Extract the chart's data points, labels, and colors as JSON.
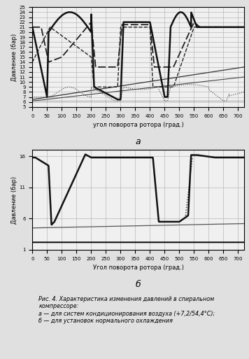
{
  "fig_width": 3.56,
  "fig_height": 5.13,
  "dpi": 100,
  "bg_color": "#e0e0e0",
  "plot_bg": "#f0f0f0",
  "caption_bg": "#c8d8e8",
  "caption_text": "Рис. 4. Характеристика изменения давлений в спиральном\nкомпрессоре:\nа — для систем кондиционирования воздуха (+7,2/54,4°С);\nб — для установок нормального охлаждения",
  "subplot_a": {
    "xlabel": "угол поворота ротора (град.)",
    "ylabel": "Давление (бар)",
    "label_bottom": "а",
    "xlim": [
      0,
      720
    ],
    "ylim": [
      5,
      25
    ],
    "yticks": [
      5,
      6,
      7,
      8,
      9,
      10,
      11,
      12,
      13,
      14,
      15,
      16,
      17,
      18,
      19,
      20,
      21,
      22,
      23,
      24,
      25
    ],
    "xticks": [
      0,
      50,
      100,
      150,
      200,
      250,
      300,
      350,
      400,
      450,
      500,
      550,
      600,
      650,
      700
    ]
  },
  "subplot_b": {
    "xlabel": "Угол поворота ротора (град.)",
    "ylabel": "Давление (бар)",
    "label_bottom": "б",
    "xlim": [
      0,
      720
    ],
    "ylim": [
      1,
      17
    ],
    "yticks": [
      1,
      6,
      11,
      16
    ],
    "xticks": [
      0,
      50,
      100,
      150,
      200,
      250,
      300,
      350,
      400,
      450,
      500,
      550,
      600,
      650,
      700
    ]
  }
}
